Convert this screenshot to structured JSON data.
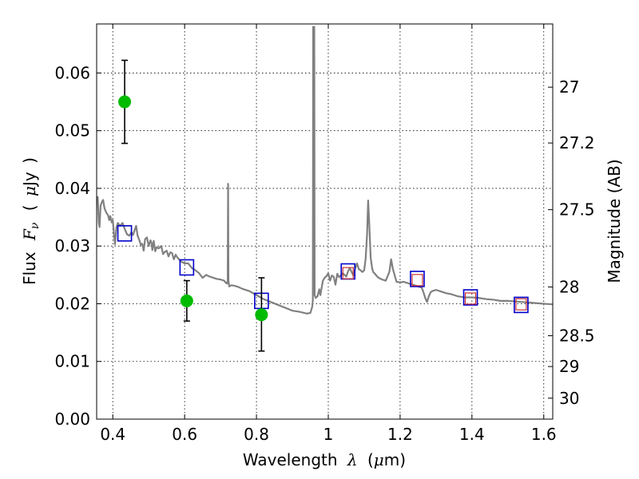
{
  "chart_data": {
    "type": "scatter",
    "xlabel": {
      "prefix": "Wavelength",
      "symbol": "λ",
      "unit_open": "(",
      "unit_mu": "μ",
      "unit_rest": "m)"
    },
    "ylabel": {
      "prefix": "Flux",
      "symbol": "F",
      "sub": "ν",
      "unit_open": "(",
      "unit_mu": "μ",
      "unit_rest": "Jy",
      "unit_close": ")"
    },
    "y2label": "Magnitude (AB)",
    "xlim": [
      0.355,
      1.625
    ],
    "ylim": [
      0.0,
      0.0685
    ],
    "grid": true,
    "grid_style": "dotted",
    "x_ticks": [
      {
        "v": 0.4,
        "label": "0.4"
      },
      {
        "v": 0.6,
        "label": "0.6"
      },
      {
        "v": 0.8,
        "label": "0.8"
      },
      {
        "v": 1.0,
        "label": "1"
      },
      {
        "v": 1.2,
        "label": "1.2"
      },
      {
        "v": 1.4,
        "label": "1.4"
      },
      {
        "v": 1.6,
        "label": "1.6"
      }
    ],
    "y_ticks": [
      {
        "v": 0.0,
        "label": "0.00"
      },
      {
        "v": 0.01,
        "label": "0.01"
      },
      {
        "v": 0.02,
        "label": "0.02"
      },
      {
        "v": 0.03,
        "label": "0.03"
      },
      {
        "v": 0.04,
        "label": "0.04"
      },
      {
        "v": 0.05,
        "label": "0.05"
      },
      {
        "v": 0.06,
        "label": "0.06"
      }
    ],
    "y2_ticks": [
      {
        "mag": 27.0,
        "label": "27"
      },
      {
        "mag": 27.2,
        "label": "27.2"
      },
      {
        "mag": 27.5,
        "label": "27.5"
      },
      {
        "mag": 28.0,
        "label": "28"
      },
      {
        "mag": 28.5,
        "label": "28.5"
      },
      {
        "mag": 29.0,
        "label": "29"
      },
      {
        "mag": 30.0,
        "label": "30"
      }
    ],
    "y2_zeropoint_mag": 23.9,
    "colors": {
      "spectrum": "#808080",
      "observed": "#00bb00",
      "model_blue": "#0000cc",
      "model_red": "#cc3333",
      "errorbar": "#000000"
    },
    "series": [
      {
        "type": "line",
        "points": [
          [
            0.355,
            0.0385
          ],
          [
            0.358,
            0.0385
          ],
          [
            0.361,
            0.034
          ],
          [
            0.363,
            0.0333
          ],
          [
            0.366,
            0.037
          ],
          [
            0.37,
            0.0377
          ],
          [
            0.373,
            0.038
          ],
          [
            0.377,
            0.0365
          ],
          [
            0.382,
            0.0358
          ],
          [
            0.387,
            0.0353
          ],
          [
            0.39,
            0.0345
          ],
          [
            0.393,
            0.0352
          ],
          [
            0.397,
            0.0341
          ],
          [
            0.4,
            0.0345
          ],
          [
            0.403,
            0.0322
          ],
          [
            0.406,
            0.0303
          ],
          [
            0.41,
            0.0332
          ],
          [
            0.414,
            0.034
          ],
          [
            0.42,
            0.0335
          ],
          [
            0.427,
            0.034
          ],
          [
            0.433,
            0.033
          ],
          [
            0.44,
            0.032
          ],
          [
            0.446,
            0.0318
          ],
          [
            0.452,
            0.0324
          ],
          [
            0.456,
            0.0319
          ],
          [
            0.46,
            0.0326
          ],
          [
            0.465,
            0.0335
          ],
          [
            0.469,
            0.0318
          ],
          [
            0.474,
            0.031
          ],
          [
            0.478,
            0.0302
          ],
          [
            0.482,
            0.0304
          ],
          [
            0.486,
            0.0292
          ],
          [
            0.49,
            0.0312
          ],
          [
            0.495,
            0.0315
          ],
          [
            0.5,
            0.03
          ],
          [
            0.505,
            0.031
          ],
          [
            0.508,
            0.0305
          ],
          [
            0.51,
            0.0293
          ],
          [
            0.514,
            0.0309
          ],
          [
            0.518,
            0.0291
          ],
          [
            0.522,
            0.0298
          ],
          [
            0.528,
            0.0296
          ],
          [
            0.535,
            0.03
          ],
          [
            0.54,
            0.0286
          ],
          [
            0.545,
            0.029
          ],
          [
            0.55,
            0.0292
          ],
          [
            0.555,
            0.0282
          ],
          [
            0.56,
            0.0289
          ],
          [
            0.565,
            0.0288
          ],
          [
            0.57,
            0.0277
          ],
          [
            0.575,
            0.0285
          ],
          [
            0.58,
            0.028
          ],
          [
            0.59,
            0.0273
          ],
          [
            0.6,
            0.027
          ],
          [
            0.61,
            0.027
          ],
          [
            0.62,
            0.0262
          ],
          [
            0.63,
            0.0258
          ],
          [
            0.64,
            0.0253
          ],
          [
            0.65,
            0.0245
          ],
          [
            0.66,
            0.025
          ],
          [
            0.67,
            0.0247
          ],
          [
            0.68,
            0.0245
          ],
          [
            0.69,
            0.0243
          ],
          [
            0.7,
            0.0242
          ],
          [
            0.71,
            0.024
          ],
          [
            0.715,
            0.0236
          ],
          [
            0.718,
            0.0235
          ],
          [
            0.72,
            0.024
          ],
          [
            0.721,
            0.0408
          ],
          [
            0.722,
            0.024
          ],
          [
            0.724,
            0.023
          ],
          [
            0.73,
            0.0232
          ],
          [
            0.74,
            0.0231
          ],
          [
            0.75,
            0.0229
          ],
          [
            0.76,
            0.0226
          ],
          [
            0.78,
            0.0222
          ],
          [
            0.8,
            0.0215
          ],
          [
            0.82,
            0.0208
          ],
          [
            0.84,
            0.0203
          ],
          [
            0.86,
            0.0198
          ],
          [
            0.88,
            0.0193
          ],
          [
            0.9,
            0.0188
          ],
          [
            0.92,
            0.0186
          ],
          [
            0.94,
            0.0183
          ],
          [
            0.95,
            0.0184
          ],
          [
            0.955,
            0.0194
          ],
          [
            0.957,
            0.0205
          ],
          [
            0.958,
            0.068
          ],
          [
            0.961,
            0.068
          ],
          [
            0.962,
            0.0215
          ],
          [
            0.965,
            0.021
          ],
          [
            0.97,
            0.0213
          ],
          [
            0.975,
            0.0225
          ],
          [
            0.978,
            0.0215
          ],
          [
            0.985,
            0.024
          ],
          [
            0.99,
            0.0245
          ],
          [
            0.995,
            0.0248
          ],
          [
            1.0,
            0.0253
          ],
          [
            1.005,
            0.024
          ],
          [
            1.01,
            0.0249
          ],
          [
            1.015,
            0.0247
          ],
          [
            1.02,
            0.0233
          ],
          [
            1.025,
            0.0252
          ],
          [
            1.03,
            0.0246
          ],
          [
            1.035,
            0.0249
          ],
          [
            1.04,
            0.0253
          ],
          [
            1.045,
            0.025
          ],
          [
            1.05,
            0.0247
          ],
          [
            1.055,
            0.0256
          ],
          [
            1.06,
            0.0262
          ],
          [
            1.065,
            0.0255
          ],
          [
            1.07,
            0.0249
          ],
          [
            1.075,
            0.0261
          ],
          [
            1.08,
            0.027
          ],
          [
            1.085,
            0.026
          ],
          [
            1.09,
            0.0258
          ],
          [
            1.095,
            0.0255
          ],
          [
            1.1,
            0.0258
          ],
          [
            1.104,
            0.0278
          ],
          [
            1.108,
            0.032
          ],
          [
            1.111,
            0.0379
          ],
          [
            1.114,
            0.034
          ],
          [
            1.118,
            0.028
          ],
          [
            1.122,
            0.0262
          ],
          [
            1.125,
            0.0255
          ],
          [
            1.13,
            0.0252
          ],
          [
            1.135,
            0.0248
          ],
          [
            1.14,
            0.0245
          ],
          [
            1.15,
            0.0242
          ],
          [
            1.16,
            0.024
          ],
          [
            1.17,
            0.0255
          ],
          [
            1.175,
            0.0277
          ],
          [
            1.18,
            0.026
          ],
          [
            1.19,
            0.0238
          ],
          [
            1.2,
            0.0237
          ],
          [
            1.21,
            0.0238
          ],
          [
            1.22,
            0.0236
          ],
          [
            1.23,
            0.0234
          ],
          [
            1.24,
            0.0232
          ],
          [
            1.25,
            0.023
          ],
          [
            1.26,
            0.0228
          ],
          [
            1.265,
            0.022
          ],
          [
            1.27,
            0.021
          ],
          [
            1.275,
            0.0203
          ],
          [
            1.28,
            0.0213
          ],
          [
            1.285,
            0.022
          ],
          [
            1.29,
            0.0222
          ],
          [
            1.3,
            0.0224
          ],
          [
            1.31,
            0.0222
          ],
          [
            1.32,
            0.022
          ],
          [
            1.33,
            0.0218
          ],
          [
            1.34,
            0.0217
          ],
          [
            1.35,
            0.0215
          ],
          [
            1.36,
            0.0213
          ],
          [
            1.37,
            0.0212
          ],
          [
            1.38,
            0.0211
          ],
          [
            1.4,
            0.0211
          ],
          [
            1.42,
            0.021
          ],
          [
            1.44,
            0.0208
          ],
          [
            1.46,
            0.0207
          ],
          [
            1.48,
            0.0205
          ],
          [
            1.5,
            0.0205
          ],
          [
            1.52,
            0.0204
          ],
          [
            1.54,
            0.0203
          ],
          [
            1.56,
            0.0202
          ],
          [
            1.58,
            0.0201
          ],
          [
            1.6,
            0.02
          ],
          [
            1.625,
            0.0199
          ]
        ]
      },
      {
        "type": "errorbar",
        "points": [
          {
            "x": 0.433,
            "y": 0.055,
            "ylo": 0.0478,
            "yhi": 0.0622
          },
          {
            "x": 0.606,
            "y": 0.0205,
            "ylo": 0.017,
            "yhi": 0.024
          },
          {
            "x": 0.814,
            "y": 0.0181,
            "ylo": 0.0118,
            "yhi": 0.0245
          }
        ]
      },
      {
        "type": "square",
        "points": [
          {
            "x": 0.433,
            "y": 0.0322
          },
          {
            "x": 0.606,
            "y": 0.0263
          },
          {
            "x": 0.814,
            "y": 0.0205
          },
          {
            "x": 1.055,
            "y": 0.0256
          },
          {
            "x": 1.248,
            "y": 0.0243
          },
          {
            "x": 1.396,
            "y": 0.0211
          },
          {
            "x": 1.537,
            "y": 0.0198
          }
        ]
      },
      {
        "type": "square",
        "points": [
          {
            "x": 1.055,
            "y": 0.0253
          },
          {
            "x": 1.248,
            "y": 0.0241
          },
          {
            "x": 1.396,
            "y": 0.0209
          },
          {
            "x": 1.537,
            "y": 0.0199
          }
        ]
      }
    ]
  }
}
